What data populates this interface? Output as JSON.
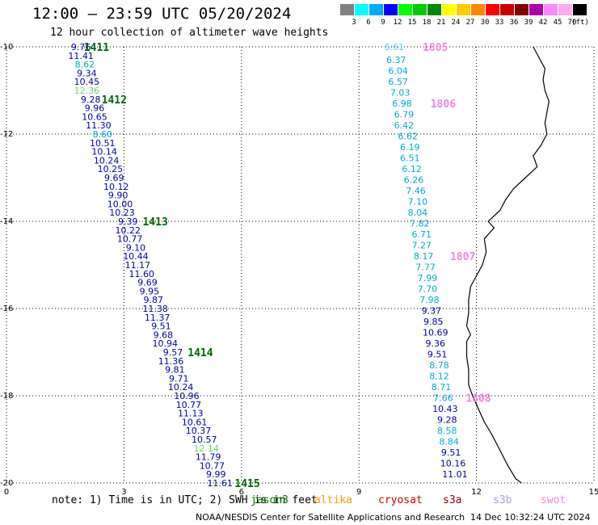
{
  "header": {
    "title": "12:00 – 23:59 UTC 05/20/2024",
    "subtitle": "12 hour collection of altimeter wave heights"
  },
  "legend": {
    "unit": "(ft)",
    "bins": [
      {
        "color": "#808080",
        "label": "3"
      },
      {
        "color": "#00ffff",
        "label": "6"
      },
      {
        "color": "#00aaff",
        "label": "9"
      },
      {
        "color": "#0000ff",
        "label": "12"
      },
      {
        "color": "#00ff00",
        "label": "15"
      },
      {
        "color": "#00cc00",
        "label": "18"
      },
      {
        "color": "#008800",
        "label": "21"
      },
      {
        "color": "#ffff00",
        "label": "24"
      },
      {
        "color": "#ffcc00",
        "label": "27"
      },
      {
        "color": "#ff8800",
        "label": "30"
      },
      {
        "color": "#ff0000",
        "label": "33"
      },
      {
        "color": "#cc0000",
        "label": "36"
      },
      {
        "color": "#880000",
        "label": "39"
      },
      {
        "color": "#aa00aa",
        "label": "42"
      },
      {
        "color": "#ff88ff",
        "label": "45"
      },
      {
        "color": "#ffaaee",
        "label": "70"
      },
      {
        "color": "#000000",
        "label": ""
      }
    ]
  },
  "axes": {
    "x_ticks": [
      "0",
      "3",
      "6",
      "9",
      "12",
      "15"
    ],
    "y_ticks": [
      "-10",
      "-12",
      "-14",
      "-16",
      "-18",
      "-20"
    ],
    "lon_range": [
      0,
      15
    ],
    "lat_range": [
      -10,
      -20
    ]
  },
  "colors": {
    "darkblue": "#0000aa",
    "cyan": "#00aacc",
    "lightgreen": "#66dd55",
    "darkgreen": "#006600",
    "pink": "#ee88dd",
    "lightcyan": "#55ccee"
  },
  "tracks": [
    {
      "points": [
        {
          "t": "9.76",
          "lon": 1.9,
          "lat": -10.0,
          "c": "darkblue"
        },
        {
          "t": "11.41",
          "lon": 1.9,
          "lat": -10.2,
          "c": "darkblue"
        },
        {
          "t": "8.62",
          "lon": 2.0,
          "lat": -10.4,
          "c": "cyan"
        },
        {
          "t": "9.34",
          "lon": 2.05,
          "lat": -10.6,
          "c": "darkblue"
        },
        {
          "t": "10.45",
          "lon": 2.05,
          "lat": -10.8,
          "c": "darkblue"
        },
        {
          "t": "12.36",
          "lon": 2.05,
          "lat": -11.0,
          "c": "lightgreen"
        },
        {
          "t": "9.28",
          "lon": 2.15,
          "lat": -11.2,
          "c": "darkblue"
        },
        {
          "t": "9.96",
          "lon": 2.25,
          "lat": -11.4,
          "c": "darkblue"
        },
        {
          "t": "10.65",
          "lon": 2.25,
          "lat": -11.6,
          "c": "darkblue"
        },
        {
          "t": "11.30",
          "lon": 2.35,
          "lat": -11.8,
          "c": "darkblue"
        },
        {
          "t": "8.60",
          "lon": 2.45,
          "lat": -12.0,
          "c": "cyan"
        },
        {
          "t": "10.51",
          "lon": 2.45,
          "lat": -12.2,
          "c": "darkblue"
        },
        {
          "t": "10.14",
          "lon": 2.5,
          "lat": -12.4,
          "c": "darkblue"
        },
        {
          "t": "10.24",
          "lon": 2.55,
          "lat": -12.6,
          "c": "darkblue"
        },
        {
          "t": "10.25",
          "lon": 2.65,
          "lat": -12.8,
          "c": "darkblue"
        },
        {
          "t": "9.69",
          "lon": 2.75,
          "lat": -13.0,
          "c": "darkblue"
        },
        {
          "t": "10.12",
          "lon": 2.8,
          "lat": -13.2,
          "c": "darkblue"
        },
        {
          "t": "9.90",
          "lon": 2.85,
          "lat": -13.4,
          "c": "darkblue"
        },
        {
          "t": "10.00",
          "lon": 2.9,
          "lat": -13.6,
          "c": "darkblue"
        },
        {
          "t": "10.23",
          "lon": 2.95,
          "lat": -13.8,
          "c": "darkblue"
        },
        {
          "t": "9.39",
          "lon": 3.1,
          "lat": -14.0,
          "c": "darkblue"
        },
        {
          "t": "10.22",
          "lon": 3.1,
          "lat": -14.2,
          "c": "darkblue"
        },
        {
          "t": "10.77",
          "lon": 3.15,
          "lat": -14.4,
          "c": "darkblue"
        },
        {
          "t": "9.10",
          "lon": 3.3,
          "lat": -14.6,
          "c": "darkblue"
        },
        {
          "t": "10.44",
          "lon": 3.3,
          "lat": -14.8,
          "c": "darkblue"
        },
        {
          "t": "11.17",
          "lon": 3.35,
          "lat": -15.0,
          "c": "darkblue"
        },
        {
          "t": "11.60",
          "lon": 3.45,
          "lat": -15.2,
          "c": "darkblue"
        },
        {
          "t": "9.69",
          "lon": 3.6,
          "lat": -15.4,
          "c": "darkblue"
        },
        {
          "t": "9.95",
          "lon": 3.65,
          "lat": -15.6,
          "c": "darkblue"
        },
        {
          "t": "9.87",
          "lon": 3.75,
          "lat": -15.8,
          "c": "darkblue"
        },
        {
          "t": "11.38",
          "lon": 3.8,
          "lat": -16.0,
          "c": "darkblue"
        },
        {
          "t": "11.37",
          "lon": 3.85,
          "lat": -16.2,
          "c": "darkblue"
        },
        {
          "t": "9.51",
          "lon": 3.95,
          "lat": -16.4,
          "c": "darkblue"
        },
        {
          "t": "9.68",
          "lon": 4.0,
          "lat": -16.6,
          "c": "darkblue"
        },
        {
          "t": "10.94",
          "lon": 4.05,
          "lat": -16.8,
          "c": "darkblue"
        },
        {
          "t": "9.57",
          "lon": 4.25,
          "lat": -17.0,
          "c": "darkblue"
        },
        {
          "t": "11.36",
          "lon": 4.2,
          "lat": -17.2,
          "c": "darkblue"
        },
        {
          "t": "9.81",
          "lon": 4.3,
          "lat": -17.4,
          "c": "darkblue"
        },
        {
          "t": "9.71",
          "lon": 4.4,
          "lat": -17.6,
          "c": "darkblue"
        },
        {
          "t": "10.24",
          "lon": 4.45,
          "lat": -17.8,
          "c": "darkblue"
        },
        {
          "t": "10.96",
          "lon": 4.6,
          "lat": -18.0,
          "c": "darkblue"
        },
        {
          "t": "10.77",
          "lon": 4.65,
          "lat": -18.2,
          "c": "darkblue"
        },
        {
          "t": "11.13",
          "lon": 4.7,
          "lat": -18.4,
          "c": "darkblue"
        },
        {
          "t": "10.61",
          "lon": 4.8,
          "lat": -18.6,
          "c": "darkblue"
        },
        {
          "t": "10.37",
          "lon": 4.9,
          "lat": -18.8,
          "c": "darkblue"
        },
        {
          "t": "10.57",
          "lon": 5.05,
          "lat": -19.0,
          "c": "darkblue"
        },
        {
          "t": "12.14",
          "lon": 5.1,
          "lat": -19.2,
          "c": "lightgreen"
        },
        {
          "t": "11.79",
          "lon": 5.15,
          "lat": -19.4,
          "c": "darkblue"
        },
        {
          "t": "10.77",
          "lon": 5.25,
          "lat": -19.6,
          "c": "darkblue"
        },
        {
          "t": "9.99",
          "lon": 5.35,
          "lat": -19.8,
          "c": "darkblue"
        },
        {
          "t": "11.61",
          "lon": 5.45,
          "lat": -20.0,
          "c": "darkblue"
        }
      ],
      "passes": [
        {
          "t": "1411",
          "lon": 2.3,
          "lat": -10.0,
          "c": "darkgreen"
        },
        {
          "t": "1412",
          "lon": 2.75,
          "lat": -11.2,
          "c": "darkgreen"
        },
        {
          "t": "1413",
          "lon": 3.8,
          "lat": -14.0,
          "c": "darkgreen"
        },
        {
          "t": "1414",
          "lon": 4.95,
          "lat": -17.0,
          "c": "darkgreen"
        },
        {
          "t": "1415",
          "lon": 6.15,
          "lat": -20.0,
          "c": "darkgreen"
        }
      ]
    },
    {
      "points": [
        {
          "t": "6.61",
          "lon": 9.9,
          "lat": -10.0,
          "c": "lightcyan"
        },
        {
          "t": "6.37",
          "lon": 9.95,
          "lat": -10.3,
          "c": "cyan"
        },
        {
          "t": "6.04",
          "lon": 10.0,
          "lat": -10.55,
          "c": "cyan"
        },
        {
          "t": "6.57",
          "lon": 10.0,
          "lat": -10.8,
          "c": "cyan"
        },
        {
          "t": "7.03",
          "lon": 10.05,
          "lat": -11.05,
          "c": "cyan"
        },
        {
          "t": "6.98",
          "lon": 10.1,
          "lat": -11.3,
          "c": "cyan"
        },
        {
          "t": "6.79",
          "lon": 10.15,
          "lat": -11.55,
          "c": "cyan"
        },
        {
          "t": "6.42",
          "lon": 10.15,
          "lat": -11.8,
          "c": "cyan"
        },
        {
          "t": "6.62",
          "lon": 10.25,
          "lat": -12.05,
          "c": "cyan"
        },
        {
          "t": "6.19",
          "lon": 10.3,
          "lat": -12.3,
          "c": "cyan"
        },
        {
          "t": "6.51",
          "lon": 10.3,
          "lat": -12.55,
          "c": "cyan"
        },
        {
          "t": "6.12",
          "lon": 10.35,
          "lat": -12.8,
          "c": "cyan"
        },
        {
          "t": "6.26",
          "lon": 10.4,
          "lat": -13.05,
          "c": "cyan"
        },
        {
          "t": "7.46",
          "lon": 10.45,
          "lat": -13.3,
          "c": "cyan"
        },
        {
          "t": "7.10",
          "lon": 10.5,
          "lat": -13.55,
          "c": "cyan"
        },
        {
          "t": "8.04",
          "lon": 10.5,
          "lat": -13.8,
          "c": "cyan"
        },
        {
          "t": "7.82",
          "lon": 10.55,
          "lat": -14.05,
          "c": "cyan"
        },
        {
          "t": "6.71",
          "lon": 10.6,
          "lat": -14.3,
          "c": "cyan"
        },
        {
          "t": "7.27",
          "lon": 10.6,
          "lat": -14.55,
          "c": "cyan"
        },
        {
          "t": "8.17",
          "lon": 10.65,
          "lat": -14.8,
          "c": "cyan"
        },
        {
          "t": "7.77",
          "lon": 10.7,
          "lat": -15.05,
          "c": "cyan"
        },
        {
          "t": "7.99",
          "lon": 10.75,
          "lat": -15.3,
          "c": "cyan"
        },
        {
          "t": "7.70",
          "lon": 10.75,
          "lat": -15.55,
          "c": "cyan"
        },
        {
          "t": "7.98",
          "lon": 10.8,
          "lat": -15.8,
          "c": "cyan"
        },
        {
          "t": "9.37",
          "lon": 10.85,
          "lat": -16.05,
          "c": "darkblue"
        },
        {
          "t": "9.85",
          "lon": 10.9,
          "lat": -16.3,
          "c": "darkblue"
        },
        {
          "t": "10.69",
          "lon": 10.95,
          "lat": -16.55,
          "c": "darkblue"
        },
        {
          "t": "9.36",
          "lon": 10.95,
          "lat": -16.8,
          "c": "darkblue"
        },
        {
          "t": "9.51",
          "lon": 11.0,
          "lat": -17.05,
          "c": "darkblue"
        },
        {
          "t": "8.78",
          "lon": 11.05,
          "lat": -17.3,
          "c": "cyan"
        },
        {
          "t": "8.12",
          "lon": 11.05,
          "lat": -17.55,
          "c": "cyan"
        },
        {
          "t": "8.71",
          "lon": 11.1,
          "lat": -17.8,
          "c": "cyan"
        },
        {
          "t": "7.66",
          "lon": 11.15,
          "lat": -18.05,
          "c": "cyan"
        },
        {
          "t": "10.43",
          "lon": 11.2,
          "lat": -18.3,
          "c": "darkblue"
        },
        {
          "t": "9.28",
          "lon": 11.25,
          "lat": -18.55,
          "c": "darkblue"
        },
        {
          "t": "8.58",
          "lon": 11.25,
          "lat": -18.8,
          "c": "cyan"
        },
        {
          "t": "8.84",
          "lon": 11.3,
          "lat": -19.05,
          "c": "cyan"
        },
        {
          "t": "9.51",
          "lon": 11.35,
          "lat": -19.3,
          "c": "darkblue"
        },
        {
          "t": "10.16",
          "lon": 11.4,
          "lat": -19.55,
          "c": "darkblue"
        },
        {
          "t": "11.01",
          "lon": 11.45,
          "lat": -19.8,
          "c": "darkblue"
        }
      ],
      "passes": [
        {
          "t": "1805",
          "lon": 10.95,
          "lat": -10.0,
          "c": "pink"
        },
        {
          "t": "1806",
          "lon": 11.15,
          "lat": -11.3,
          "c": "pink"
        },
        {
          "t": "1807",
          "lon": 11.65,
          "lat": -14.8,
          "c": "pink"
        },
        {
          "t": "1808",
          "lon": 12.05,
          "lat": -18.05,
          "c": "pink"
        }
      ]
    }
  ],
  "coastline": [
    [
      13.45,
      -10.0
    ],
    [
      13.6,
      -10.25
    ],
    [
      13.75,
      -10.5
    ],
    [
      13.7,
      -10.75
    ],
    [
      13.75,
      -11.0
    ],
    [
      13.85,
      -11.25
    ],
    [
      13.8,
      -11.5
    ],
    [
      13.75,
      -11.75
    ],
    [
      13.8,
      -12.0
    ],
    [
      13.65,
      -12.25
    ],
    [
      13.45,
      -12.5
    ],
    [
      13.55,
      -12.75
    ],
    [
      13.25,
      -13.0
    ],
    [
      12.95,
      -13.25
    ],
    [
      12.75,
      -13.5
    ],
    [
      12.6,
      -13.75
    ],
    [
      12.3,
      -14.0
    ],
    [
      12.45,
      -14.15
    ],
    [
      12.2,
      -14.4
    ],
    [
      12.25,
      -14.7
    ],
    [
      12.15,
      -15.0
    ],
    [
      12.0,
      -15.25
    ],
    [
      11.85,
      -15.5
    ],
    [
      11.8,
      -15.8
    ],
    [
      11.8,
      -16.1
    ],
    [
      11.75,
      -16.4
    ],
    [
      11.85,
      -16.6
    ],
    [
      11.75,
      -16.75
    ],
    [
      11.75,
      -17.1
    ],
    [
      11.8,
      -17.4
    ],
    [
      11.8,
      -17.75
    ],
    [
      11.9,
      -18.0
    ],
    [
      12.05,
      -18.3
    ],
    [
      12.2,
      -18.6
    ],
    [
      12.4,
      -18.9
    ],
    [
      12.6,
      -19.25
    ],
    [
      12.8,
      -19.6
    ],
    [
      13.0,
      -19.9
    ],
    [
      13.15,
      -20.0
    ]
  ],
  "footer": {
    "note": "note: 1) Time is in UTC; 2) SWH is in feet",
    "missions": [
      {
        "name": "jason3",
        "color": "#007700"
      },
      {
        "name": "altika",
        "color": "#ff9900"
      },
      {
        "name": "cryosat",
        "color": "#cc0000"
      },
      {
        "name": "s3a",
        "color": "#880000"
      },
      {
        "name": "s3b",
        "color": "#aa99ee"
      },
      {
        "name": "swot",
        "color": "#ee88dd"
      }
    ],
    "credit": "NOAA/NESDIS Center for Satellite Applications and Research",
    "timestamp": "14 Dec 10:32:24 UTC 2024"
  }
}
